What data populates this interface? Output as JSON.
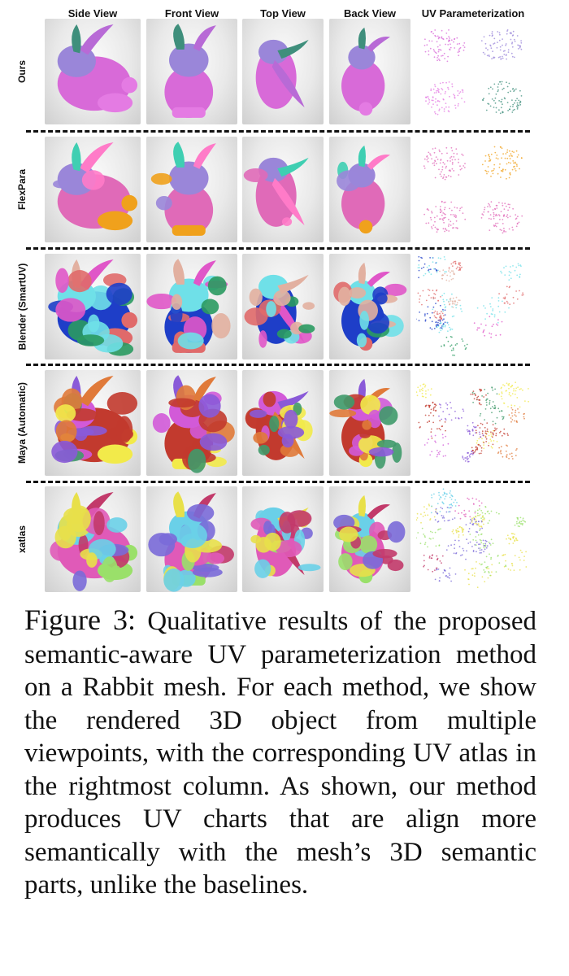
{
  "figure": {
    "column_headers": [
      "Side View",
      "Front View",
      "Top View",
      "Back View",
      "UV Parameterization"
    ],
    "rows": [
      {
        "label": "Ours",
        "palette": [
          "#d86ad8",
          "#e47be3",
          "#9a86d9",
          "#3f8f7c",
          "#b86ad6"
        ]
      },
      {
        "label": "FlexPara",
        "palette": [
          "#e06ab8",
          "#f0a11c",
          "#9a86d9",
          "#3fcfb2",
          "#ff7bc8"
        ]
      },
      {
        "label": "Blender (SmartUV)",
        "palette": [
          "#1e3ec8",
          "#e06a6a",
          "#6fe0e8",
          "#e2b0a0",
          "#e056c8",
          "#2a9a60"
        ]
      },
      {
        "label": "Maya (Automatic)",
        "palette": [
          "#c23a2e",
          "#f2ea4a",
          "#d25ad8",
          "#8a5ad8",
          "#e07a3a",
          "#3f9a6a"
        ]
      },
      {
        "label": "xatlas",
        "palette": [
          "#e05ab8",
          "#9ae06a",
          "#6ad0e8",
          "#e8e04a",
          "#c23a6a",
          "#7a6ad8"
        ]
      }
    ]
  },
  "caption": {
    "figure_number": "Figure 3:",
    "text": "Qualitative results of the pro­posed semantic-aware UV parameteri­zation method on a Rabbit mesh.  For each method, we show the rendered 3D object from multiple viewpoints, with the corresponding UV atlas in the right­most column.  As shown, our method produces UV charts that are align more semantically with the mesh’s 3D seman­tic parts, unlike the baselines."
  }
}
